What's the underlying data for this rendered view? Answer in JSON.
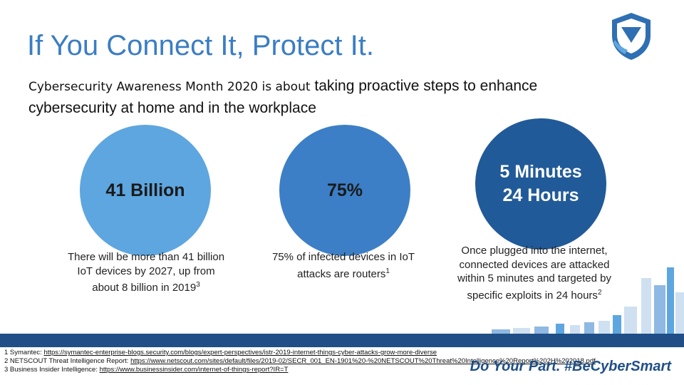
{
  "title": "If You Connect It, Protect It.",
  "subtitle": {
    "lead": "Cybersecurity Awareness Month 2020 is about",
    "rest": " taking proactive steps to enhance cybersecurity at home and in the workplace"
  },
  "stats": [
    {
      "value": "41 Billion",
      "desc_text": "There will be more than 41 billion IoT devices by 2027, up from about 8 billion in 2019",
      "ref": "3"
    },
    {
      "value": "75%",
      "desc_text": "75% of infected devices in IoT attacks are routers",
      "ref": "1"
    },
    {
      "value_line1": "5 Minutes",
      "value_line2": "24 Hours",
      "desc_text": "Once plugged into the internet, connected devices are attacked within 5 minutes and targeted by specific exploits in 24 hours",
      "ref": "2"
    }
  ],
  "references": [
    {
      "label": "1 Symantec: ",
      "link": "https://symantec-enterprise-blogs.security.com/blogs/expert-perspectives/istr-2019-internet-things-cyber-attacks-grow-more-diverse"
    },
    {
      "label": "2 NETSCOUT Threat Intelligence Report: ",
      "link": "https://www.netscout.com/sites/default/files/2019-02/SECR_001_EN-1901%20-%20NETSCOUT%20Threat%20Intelligence%20Report%202H%202018.pdf"
    },
    {
      "label": "3 Business Insider Intelligence: ",
      "link": "https://www.businessinsider.com/internet-of-things-report?IR=T"
    }
  ],
  "tagline": "Do Your Part. #BeCyberSmart",
  "logo_icon": "shield-logo-icon",
  "colors": {
    "title": "#3a7dc4",
    "circle1": "#5ea6df",
    "circle2": "#3c7fc6",
    "circle3": "#215a98",
    "band": "#1f4f86"
  }
}
